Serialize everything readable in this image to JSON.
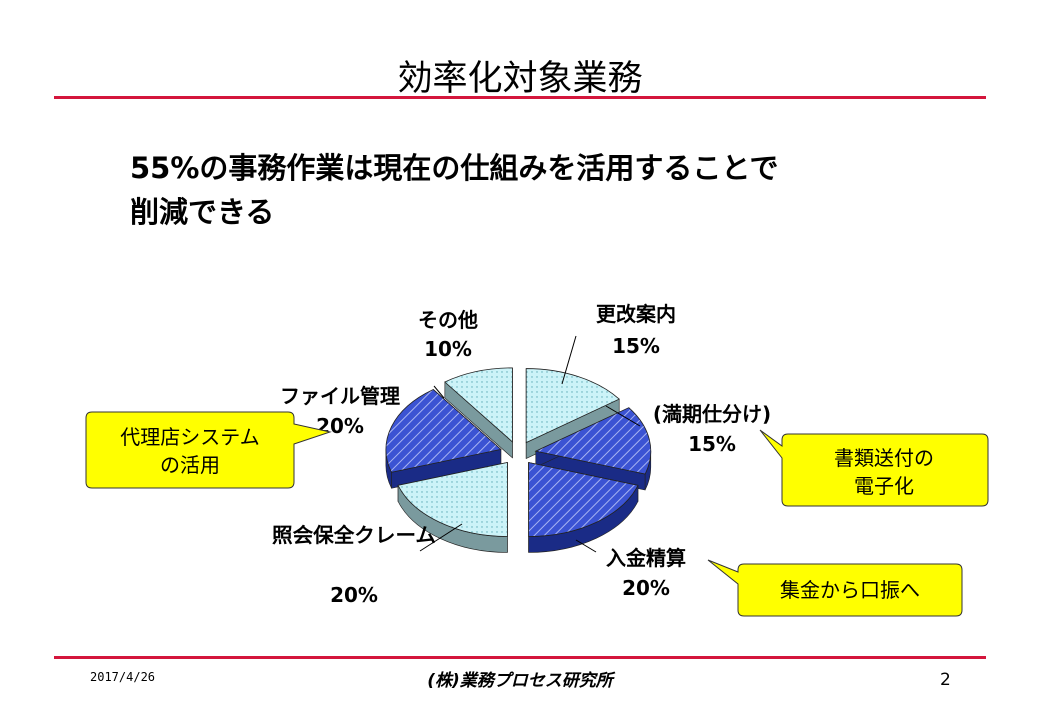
{
  "slide": {
    "title": "効率化対象業務",
    "headline_line1": "55%の事務作業は現在の仕組みを活用することで",
    "headline_line2": "削減できる"
  },
  "chart_data": {
    "type": "pie",
    "categories": [
      "更改案内",
      "(満期仕分け)",
      "入金精算",
      "照会保全クレーム",
      "ファイル管理",
      "その他"
    ],
    "values": [
      15,
      15,
      20,
      20,
      20,
      10
    ],
    "value_labels": [
      "15%",
      "15%",
      "20%",
      "20%",
      "20%",
      "10%"
    ],
    "exploded": true,
    "style": "3d",
    "colors": {
      "light_fill": "#ccf3f8",
      "light_side": "#7a9a9e",
      "blue_fill": "#3b53d3",
      "blue_side": "#1a2b86",
      "hatch": "#a8b4f2"
    }
  },
  "callouts": {
    "agency": {
      "line1": "代理店システム",
      "line2": "の活用"
    },
    "documents": {
      "line1": "書類送付の",
      "line2": "電子化"
    },
    "collection": {
      "line1": "集金から口振へ"
    },
    "fill": "#ffff00"
  },
  "footer": {
    "date": "2017/4/26",
    "company": "(株)業務プロセス研究所",
    "page": "2"
  }
}
